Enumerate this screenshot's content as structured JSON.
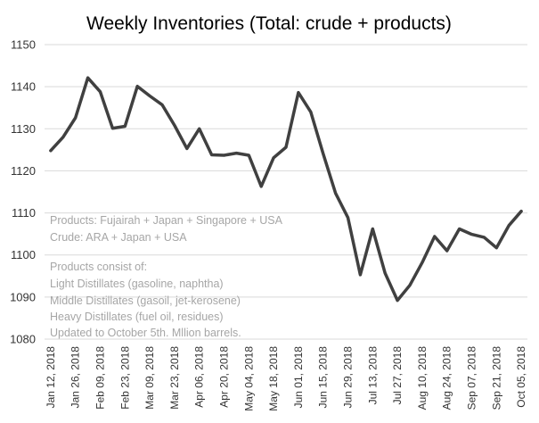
{
  "chart_data": {
    "type": "line",
    "title": "Weekly Inventories (Total: crude + products)",
    "xlabel": "",
    "ylabel": "",
    "ylim": [
      1080,
      1150
    ],
    "yticks": [
      1080,
      1090,
      1100,
      1110,
      1120,
      1130,
      1140,
      1150
    ],
    "xticks": [
      "Jan 12, 2018",
      "Jan 26, 2018",
      "Feb 09, 2018",
      "Feb 23, 2018",
      "Mar 09, 2018",
      "Mar 23, 2018",
      "Apr 06, 2018",
      "Apr 20, 2018",
      "May 04, 2018",
      "May 18, 2018",
      "Jun 01, 2018",
      "Jun 15, 2018",
      "Jun 29, 2018",
      "Jul 13, 2018",
      "Jul 27, 2018",
      "Aug 10, 2018",
      "Aug 24, 2018",
      "Sep 07, 2018",
      "Sep 21, 2018",
      "Oct 05, 2018"
    ],
    "grid": true,
    "line_color": "#404040",
    "series": [
      {
        "x": [
          "Jan 12, 2018",
          "Jan 19, 2018",
          "Jan 26, 2018",
          "Feb 02, 2018",
          "Feb 09, 2018",
          "Feb 16, 2018",
          "Feb 23, 2018",
          "Mar 02, 2018",
          "Mar 09, 2018",
          "Mar 16, 2018",
          "Mar 23, 2018",
          "Mar 30, 2018",
          "Apr 06, 2018",
          "Apr 13, 2018",
          "Apr 20, 2018",
          "Apr 27, 2018",
          "May 04, 2018",
          "May 11, 2018",
          "May 18, 2018",
          "May 25, 2018",
          "Jun 01, 2018",
          "Jun 08, 2018",
          "Jun 15, 2018",
          "Jun 22, 2018",
          "Jun 29, 2018",
          "Jul 06, 2018",
          "Jul 13, 2018",
          "Jul 20, 2018",
          "Jul 27, 2018",
          "Aug 03, 2018",
          "Aug 10, 2018",
          "Aug 17, 2018",
          "Aug 24, 2018",
          "Aug 31, 2018",
          "Sep 07, 2018",
          "Sep 14, 2018",
          "Sep 21, 2018",
          "Sep 28, 2018",
          "Oct 05, 2018"
        ],
        "values": [
          1124.8,
          1128.0,
          1132.6,
          1142.1,
          1138.8,
          1130.1,
          1130.6,
          1140.1,
          1137.8,
          1135.7,
          1130.8,
          1125.3,
          1130.0,
          1123.8,
          1123.7,
          1124.2,
          1123.7,
          1116.3,
          1123.1,
          1125.6,
          1138.6,
          1134.0,
          1124.1,
          1114.7,
          1108.9,
          1095.3,
          1106.2,
          1095.7,
          1089.2,
          1092.8,
          1098.2,
          1104.4,
          1101.0,
          1106.2,
          1104.9,
          1104.2,
          1101.7,
          1107.0,
          1110.4
        ]
      }
    ],
    "annotations": [
      "Products: Fujairah + Japan + Singapore  + USA",
      "Crude: ARA  + Japan + USA",
      "Products consist of:",
      "Light Distillates (gasoline, naphtha)",
      "Middle Distillates (gasoil, jet-kerosene)",
      "Heavy Distillates (fuel oil, residues)",
      "Updated to October 5th. Mllion barrels."
    ]
  }
}
